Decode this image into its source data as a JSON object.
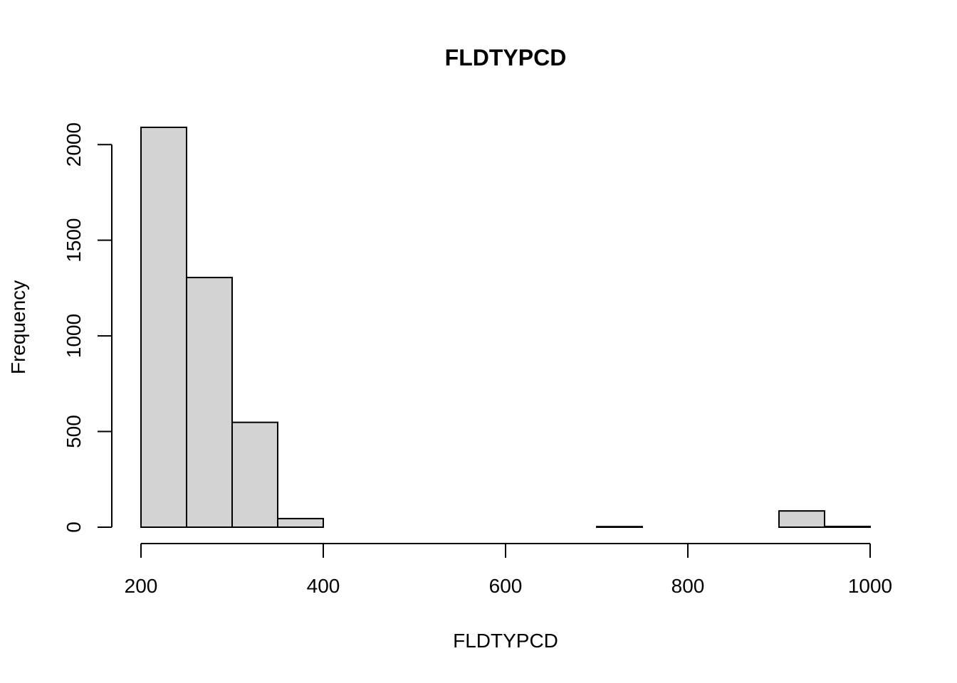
{
  "chart_data": {
    "type": "bar",
    "title": "FLDTYPCD",
    "xlabel": "FLDTYPCD",
    "ylabel": "Frequency",
    "bins": [
      {
        "start": 200,
        "end": 250,
        "count": 2090
      },
      {
        "start": 250,
        "end": 300,
        "count": 1305
      },
      {
        "start": 300,
        "end": 350,
        "count": 548
      },
      {
        "start": 350,
        "end": 400,
        "count": 45
      },
      {
        "start": 400,
        "end": 450,
        "count": 0
      },
      {
        "start": 450,
        "end": 500,
        "count": 0
      },
      {
        "start": 500,
        "end": 550,
        "count": 0
      },
      {
        "start": 550,
        "end": 600,
        "count": 0
      },
      {
        "start": 600,
        "end": 650,
        "count": 0
      },
      {
        "start": 650,
        "end": 700,
        "count": 0
      },
      {
        "start": 700,
        "end": 750,
        "count": 3
      },
      {
        "start": 750,
        "end": 800,
        "count": 0
      },
      {
        "start": 800,
        "end": 850,
        "count": 0
      },
      {
        "start": 850,
        "end": 900,
        "count": 0
      },
      {
        "start": 900,
        "end": 950,
        "count": 85
      },
      {
        "start": 950,
        "end": 1000,
        "count": 4
      }
    ],
    "xlim": [
      200,
      1000
    ],
    "ylim": [
      0,
      2090
    ],
    "x_ticks": [
      "200",
      "400",
      "600",
      "800",
      "1000"
    ],
    "y_ticks": [
      "0",
      "500",
      "1000",
      "1500",
      "2000"
    ],
    "grid": false,
    "legend": "none"
  }
}
